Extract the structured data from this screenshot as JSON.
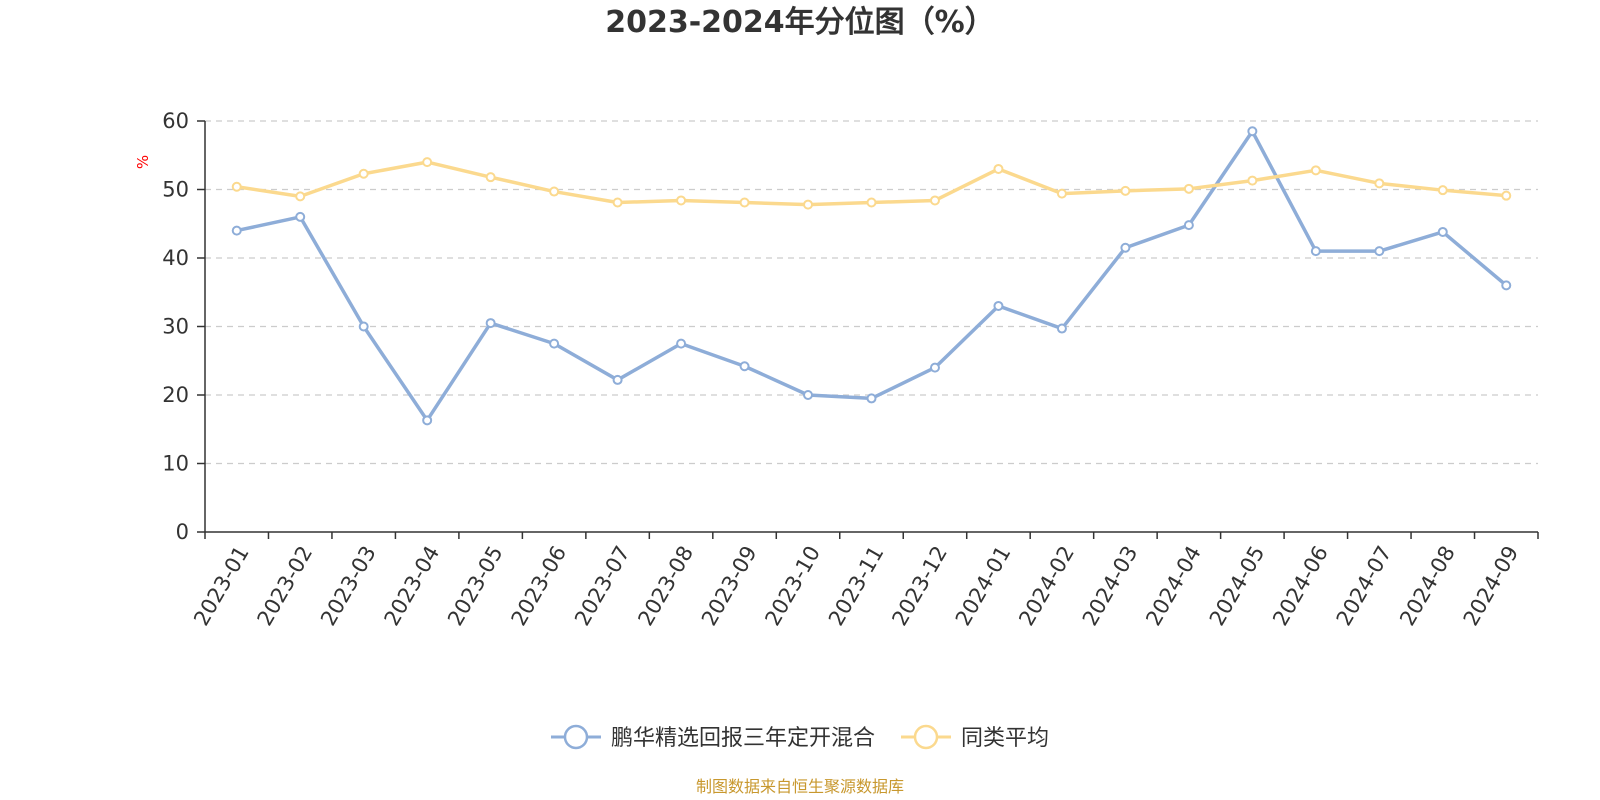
{
  "colors": {
    "series_1": "#8eadd8",
    "series_2": "#fbd98e",
    "unit_label": "#ff0000",
    "source": "#c8982e",
    "grid": "#cccccc",
    "axis": "#333333"
  },
  "chart_data": {
    "type": "line",
    "title": "2023-2024年分位图（%）",
    "ylabel": "%",
    "xlabel": "",
    "ylim": [
      0,
      60
    ],
    "yticks": [
      0,
      10,
      20,
      30,
      40,
      50,
      60
    ],
    "grid": true,
    "legend_position": "bottom",
    "categories": [
      "2023-01",
      "2023-02",
      "2023-03",
      "2023-04",
      "2023-05",
      "2023-06",
      "2023-07",
      "2023-08",
      "2023-09",
      "2023-10",
      "2023-11",
      "2023-12",
      "2024-01",
      "2024-02",
      "2024-03",
      "2024-04",
      "2024-05",
      "2024-06",
      "2024-07",
      "2024-08",
      "2024-09"
    ],
    "series": [
      {
        "name": "鹏华精选回报三年定开混合",
        "values": [
          44,
          46,
          30,
          16.3,
          30.5,
          27.5,
          22.2,
          27.5,
          24.2,
          20,
          19.5,
          24,
          33,
          29.7,
          41.5,
          44.8,
          58.5,
          41,
          41,
          43.8,
          36
        ]
      },
      {
        "name": "同类平均",
        "values": [
          50.4,
          49,
          52.3,
          54,
          51.8,
          49.7,
          48.1,
          48.4,
          48.1,
          47.8,
          48.1,
          48.4,
          53,
          49.4,
          49.8,
          50.1,
          51.3,
          52.8,
          50.9,
          49.9,
          49.1
        ]
      }
    ]
  },
  "source_text": "制图数据来自恒生聚源数据库"
}
